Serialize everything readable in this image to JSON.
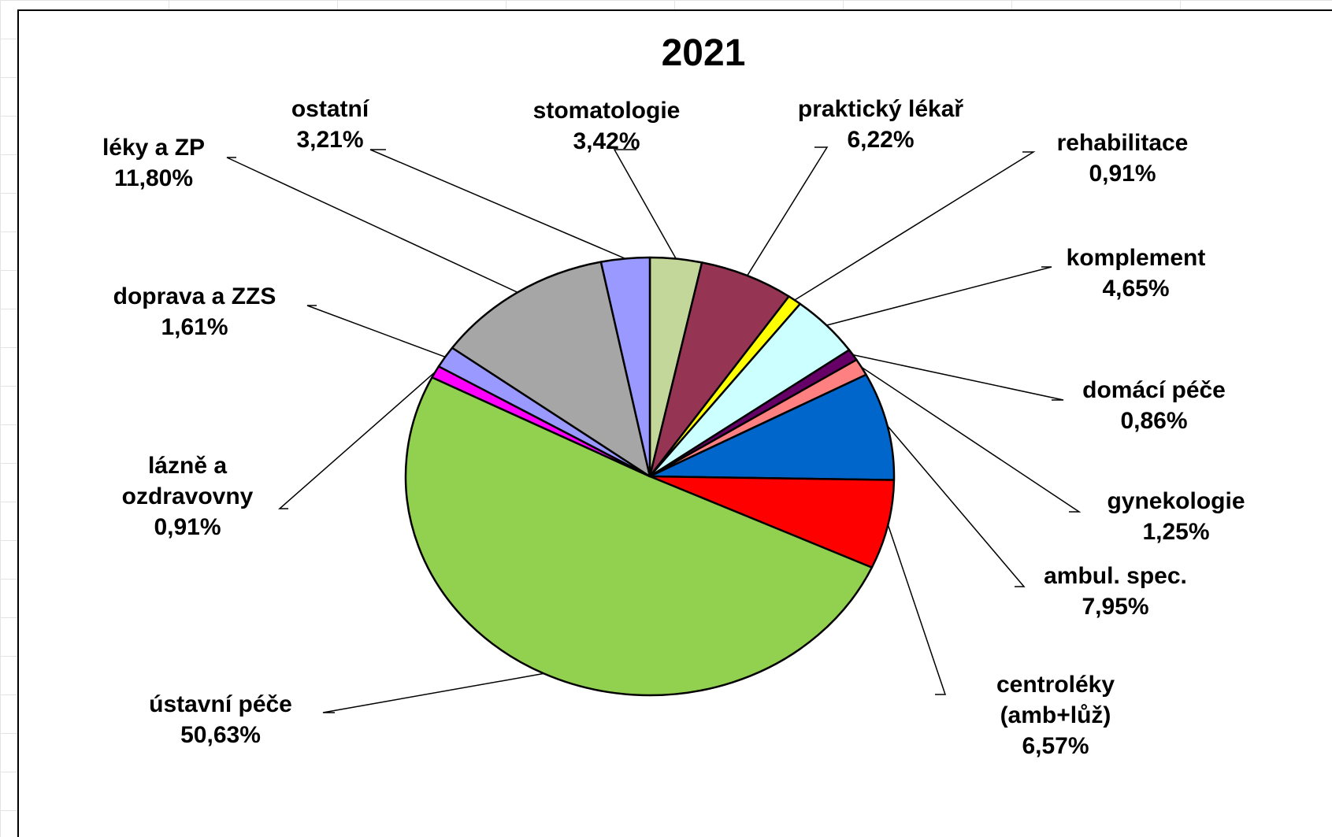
{
  "chart_data": {
    "type": "pie",
    "title": "2021",
    "slices": [
      {
        "label": "stomatologie",
        "value_label": "3,42%",
        "value": 3.42,
        "color": "#c4d79b"
      },
      {
        "label": "praktický lékař",
        "value_label": "6,22%",
        "value": 6.22,
        "color": "#953553"
      },
      {
        "label": "rehabilitace",
        "value_label": "0,91%",
        "value": 0.91,
        "color": "#ffff00"
      },
      {
        "label": "komplement",
        "value_label": "4,65%",
        "value": 4.65,
        "color": "#ccffff"
      },
      {
        "label": "domácí péče",
        "value_label": "0,86%",
        "value": 0.86,
        "color": "#660066"
      },
      {
        "label": "gynekologie",
        "value_label": "1,25%",
        "value": 1.25,
        "color": "#ff8080"
      },
      {
        "label": "ambul. spec.",
        "value_label": "7,95%",
        "value": 7.95,
        "color": "#0066cc"
      },
      {
        "label": "centroléky (amb+lůž)",
        "value_label": "6,57%",
        "value": 6.57,
        "color": "#ff0000"
      },
      {
        "label": "ústavní péče",
        "value_label": "50,63%",
        "value": 50.63,
        "color": "#92d050"
      },
      {
        "label": "lázně a ozdravovny",
        "value_label": "0,91%",
        "value": 0.91,
        "color": "#ff00ff"
      },
      {
        "label": "doprava a ZZS",
        "value_label": "1,61%",
        "value": 1.61,
        "color": "#9999ff"
      },
      {
        "label": "léky a ZP",
        "value_label": "11,80%",
        "value": 11.8,
        "color": "#a6a6a6"
      },
      {
        "label": "ostatní",
        "value_label": "3,21%",
        "value": 3.21,
        "color": "#9999ff"
      }
    ]
  }
}
